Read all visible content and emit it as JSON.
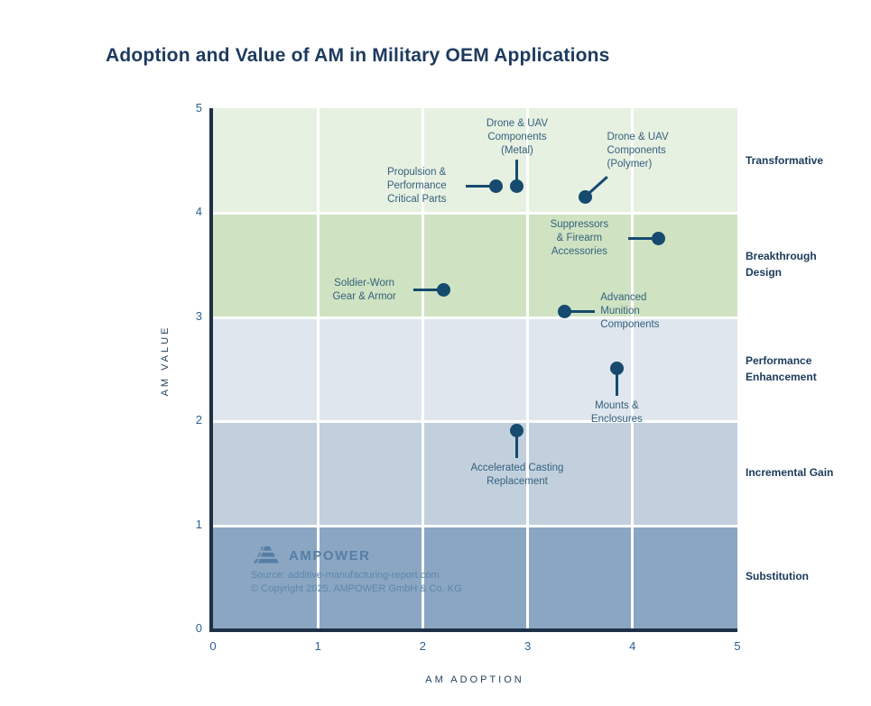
{
  "title": "Adoption and Value of AM in Military OEM Applications",
  "palette": {
    "dot": "#164a6e",
    "point_label": "#35607d",
    "tick": "#2b6095",
    "axis_line": "#1e3048",
    "band_label": "#1a3a5c",
    "title": "#1d3a5f",
    "watermark_text": "#5d86ac",
    "grid": "#ffffff"
  },
  "chart_data": {
    "type": "scatter",
    "title": "Adoption and Value of AM in Military OEM Applications",
    "xlabel": "AM ADOPTION",
    "ylabel": "AM VALUE",
    "xlim": [
      0,
      5
    ],
    "ylim": [
      0,
      5
    ],
    "xticks": [
      0,
      1,
      2,
      3,
      4,
      5
    ],
    "yticks": [
      0,
      1,
      2,
      3,
      4,
      5
    ],
    "grid": "white vertical gridlines at integer x, white separators between bands",
    "bands": [
      {
        "label": "Transformative",
        "from": 4,
        "to": 5,
        "color": "#e7f1e2"
      },
      {
        "label": "Breakthrough Design",
        "from": 3,
        "to": 4,
        "color": "#cfe3c2"
      },
      {
        "label": "Performance Enhancement",
        "from": 2,
        "to": 3,
        "color": "#dfe6ee"
      },
      {
        "label": "Incremental Gain",
        "from": 1,
        "to": 2,
        "color": "#c2d0de"
      },
      {
        "label": "Substitution",
        "from": 0,
        "to": 1,
        "color": "#8aa6c2"
      }
    ],
    "points": [
      {
        "label": "Propulsion &\nPerformance\nCritical Parts",
        "x": 2.7,
        "y": 4.25,
        "label_pos": "left"
      },
      {
        "label": "Drone & UAV\nComponents\n(Metal)",
        "x": 2.9,
        "y": 4.25,
        "label_pos": "above"
      },
      {
        "label": "Drone & UAV\nComponents\n(Polymer)",
        "x": 3.55,
        "y": 4.15,
        "label_pos": "above-right"
      },
      {
        "label": "Suppressors\n& Firearm\nAccessories",
        "x": 4.25,
        "y": 3.75,
        "label_pos": "left"
      },
      {
        "label": "Soldier-Worn\nGear & Armor",
        "x": 2.2,
        "y": 3.25,
        "label_pos": "left"
      },
      {
        "label": "Advanced\nMunition\nComponents",
        "x": 3.35,
        "y": 3.05,
        "label_pos": "right"
      },
      {
        "label": "Mounts &\nEnclosures",
        "x": 3.85,
        "y": 2.5,
        "label_pos": "below"
      },
      {
        "label": "Accelerated Casting\nReplacement",
        "x": 2.9,
        "y": 1.9,
        "label_pos": "below"
      }
    ],
    "legend_position": "right-of-plot band labels"
  },
  "watermark": {
    "brand": "AMPOWER",
    "source": "Source: additive-manufacturing-report.com",
    "copyright": "© Copyright 2025, AMPOWER GmbH & Co. KG"
  }
}
